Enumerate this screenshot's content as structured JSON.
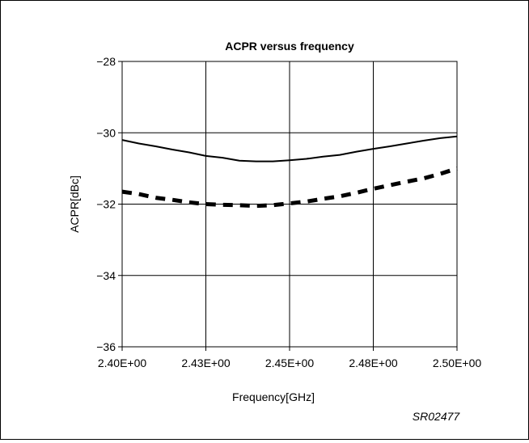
{
  "chart_data": {
    "type": "line",
    "title": "ACPR versus frequency",
    "xlabel": "Frequency[GHz]",
    "ylabel": "ACPR[dBc]",
    "x_tick_labels": [
      "2.40E+00",
      "2.43E+00",
      "2.45E+00",
      "2.48E+00",
      "2.50E+00"
    ],
    "y_tick_labels": [
      "−28",
      "−30",
      "−32",
      "−34",
      "−36"
    ],
    "y_ticks": [
      -28,
      -30,
      -32,
      -34,
      -36
    ],
    "xlim": [
      2.4,
      2.5
    ],
    "ylim": [
      -36,
      -28
    ],
    "grid": true,
    "x": [
      2.4,
      2.405,
      2.41,
      2.415,
      2.42,
      2.425,
      2.43,
      2.435,
      2.44,
      2.445,
      2.45,
      2.455,
      2.46,
      2.465,
      2.47,
      2.475,
      2.48,
      2.485,
      2.49,
      2.495,
      2.5
    ],
    "series": [
      {
        "style": "solid",
        "values": [
          -30.2,
          -30.3,
          -30.38,
          -30.47,
          -30.55,
          -30.65,
          -30.7,
          -30.78,
          -30.8,
          -30.8,
          -30.77,
          -30.73,
          -30.67,
          -30.62,
          -30.53,
          -30.45,
          -30.38,
          -30.3,
          -30.22,
          -30.15,
          -30.1
        ]
      },
      {
        "style": "dashed",
        "values": [
          -31.65,
          -31.72,
          -31.82,
          -31.88,
          -31.95,
          -32.0,
          -32.02,
          -32.03,
          -32.05,
          -32.03,
          -31.98,
          -31.93,
          -31.85,
          -31.78,
          -31.68,
          -31.57,
          -31.47,
          -31.37,
          -31.28,
          -31.15,
          -31.0
        ]
      }
    ],
    "colors": {
      "line": "#000000",
      "grid": "#000000",
      "background": "#ffffff"
    }
  },
  "figure_code": "SR02477"
}
